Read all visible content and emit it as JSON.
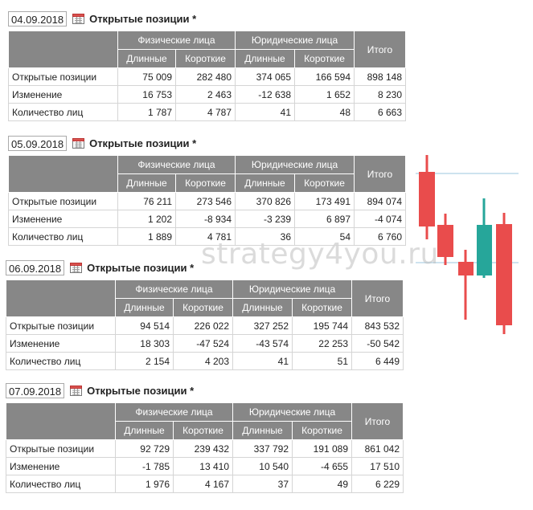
{
  "header_groups": {
    "physical": "Физические лица",
    "legal": "Юридические лица",
    "total": "Итого"
  },
  "subheaders": {
    "long": "Длинные",
    "short": "Короткие"
  },
  "row_labels": [
    "Открытые позиции",
    "Изменение",
    "Количество лиц"
  ],
  "title": "Открытые позиции *",
  "watermark": "strategy4you.ru",
  "icons": {
    "calendar": "calendar-icon"
  },
  "colors": {
    "header_bg": "#878787",
    "candle_red": "#e94c4c",
    "candle_green": "#26a69a"
  },
  "tables": [
    {
      "date": "04.09.2018",
      "rows": [
        [
          "75 009",
          "282 480",
          "374 065",
          "166 594",
          "898 148"
        ],
        [
          "16 753",
          "2 463",
          "-12 638",
          "1 652",
          "8 230"
        ],
        [
          "1 787",
          "4 787",
          "41",
          "48",
          "6 663"
        ]
      ]
    },
    {
      "date": "05.09.2018",
      "rows": [
        [
          "76 211",
          "273 546",
          "370 826",
          "173 491",
          "894 074"
        ],
        [
          "1 202",
          "-8 934",
          "-3 239",
          "6 897",
          "-4 074"
        ],
        [
          "1 889",
          "4 781",
          "36",
          "54",
          "6 760"
        ]
      ]
    },
    {
      "date": "06.09.2018",
      "rows": [
        [
          "94 514",
          "226 022",
          "327 252",
          "195 744",
          "843 532"
        ],
        [
          "18 303",
          "-47 524",
          "-43 574",
          "22 253",
          "-50 542"
        ],
        [
          "2 154",
          "4 203",
          "41",
          "51",
          "6 449"
        ]
      ]
    },
    {
      "date": "07.09.2018",
      "rows": [
        [
          "92 729",
          "239 432",
          "337 792",
          "191 089",
          "861 042"
        ],
        [
          "-1 785",
          "13 410",
          "10 540",
          "-4 655",
          "17 510"
        ],
        [
          "1 976",
          "4 167",
          "37",
          "49",
          "6 229"
        ]
      ]
    }
  ]
}
